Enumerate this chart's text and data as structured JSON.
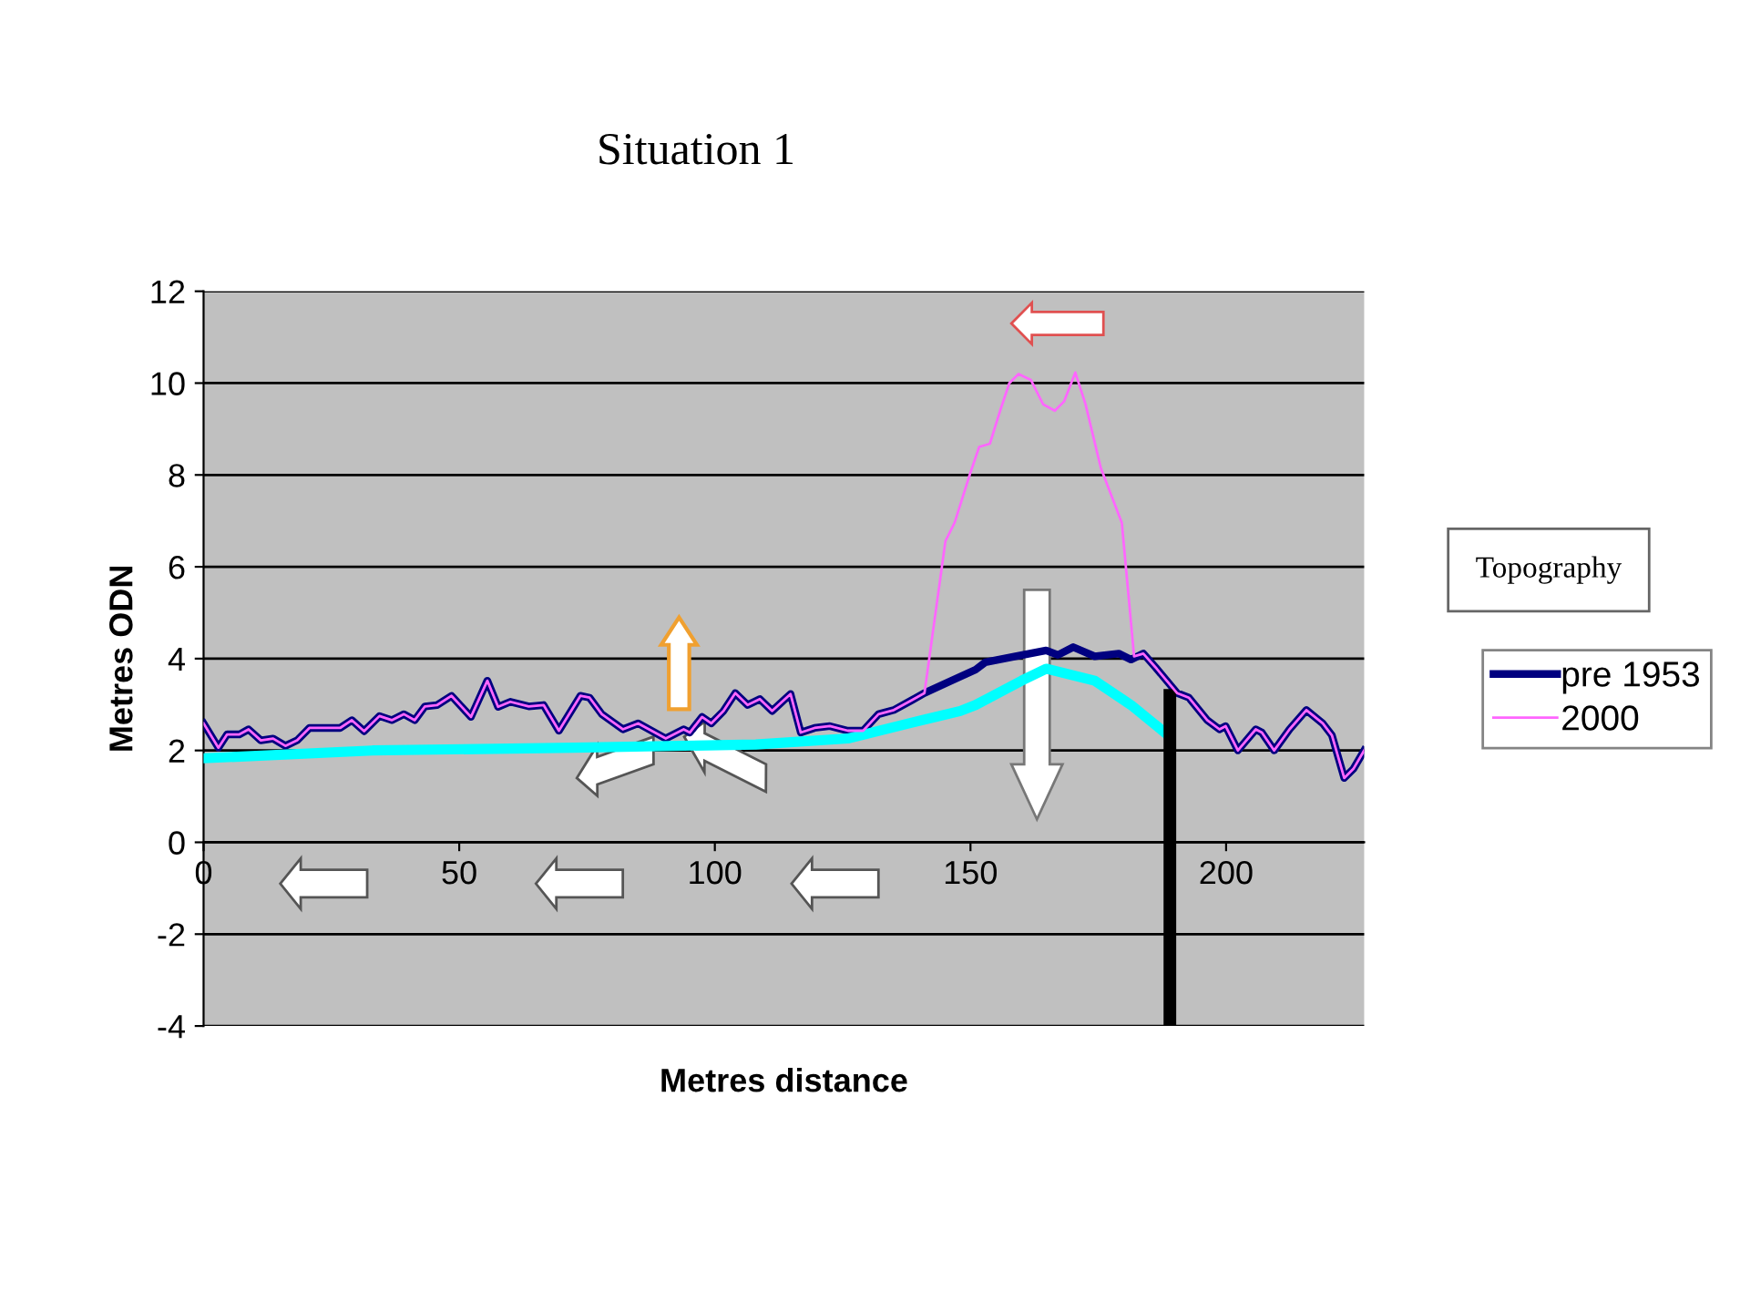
{
  "chart_data": {
    "type": "line",
    "title": "Situation 1",
    "xlabel": "Metres distance",
    "ylabel": "Metres ODN",
    "legend_title": "Topography",
    "xlim": [
      0,
      227
    ],
    "ylim": [
      -4,
      12
    ],
    "xticks": [
      0,
      50,
      100,
      150,
      200
    ],
    "yticks": [
      -4,
      -2,
      0,
      2,
      4,
      6,
      8,
      10,
      12
    ],
    "grid": "y",
    "legend": "right",
    "series": [
      {
        "name": "pre 1953",
        "color": "#000080",
        "x": [
          0,
          2.9,
          4.6,
          7,
          8.8,
          11.2,
          13.6,
          16,
          18.3,
          20.7,
          26.7,
          29,
          31.4,
          34.4,
          36.8,
          39.2,
          41.3,
          43.3,
          45.7,
          48.5,
          52.3,
          55.5,
          57.6,
          60,
          63.6,
          66.5,
          69.5,
          73.7,
          75.5,
          77.9,
          82,
          85,
          90.4,
          93.9,
          95.1,
          97.5,
          99.3,
          101.7,
          104,
          106.4,
          108.8,
          111.2,
          114.8,
          116.8,
          119.5,
          122.5,
          126,
          129,
          132,
          135,
          138.6,
          141,
          146.3,
          151,
          152.9,
          158.8,
          164.8,
          167.1,
          170.1,
          174.3,
          179,
          181.4,
          183.8,
          186.2,
          190.4,
          192.7,
          196.3,
          198.7,
          199.9,
          202.3,
          205.8,
          207,
          209.4,
          212.4,
          215.7,
          218.9,
          220.7,
          223.1,
          224.9,
          227
        ],
        "values": [
          2.59,
          2.06,
          2.35,
          2.35,
          2.46,
          2.22,
          2.26,
          2.1,
          2.22,
          2.49,
          2.49,
          2.66,
          2.42,
          2.75,
          2.66,
          2.79,
          2.66,
          2.96,
          2.99,
          3.19,
          2.73,
          3.52,
          2.95,
          3.06,
          2.96,
          2.99,
          2.43,
          3.19,
          3.15,
          2.79,
          2.46,
          2.59,
          2.26,
          2.46,
          2.39,
          2.73,
          2.59,
          2.86,
          3.25,
          2.99,
          3.12,
          2.86,
          3.23,
          2.39,
          2.49,
          2.53,
          2.43,
          2.43,
          2.79,
          2.88,
          3.1,
          3.25,
          3.52,
          3.76,
          3.92,
          4.05,
          4.18,
          4.08,
          4.25,
          4.05,
          4.11,
          3.98,
          4.11,
          3.81,
          3.25,
          3.15,
          2.66,
          2.46,
          2.53,
          2.0,
          2.46,
          2.39,
          2.0,
          2.46,
          2.88,
          2.59,
          2.33,
          1.4,
          1.6,
          2.0
        ]
      },
      {
        "name": "2000",
        "color": "#ff66ff",
        "x": [
          0,
          2.9,
          4.6,
          7,
          8.8,
          11.2,
          13.6,
          16,
          18.3,
          20.7,
          26.7,
          29,
          31.4,
          34.4,
          36.8,
          39.2,
          41.3,
          43.3,
          45.7,
          48.5,
          52.3,
          55.5,
          57.6,
          60,
          63.6,
          66.5,
          69.5,
          73.7,
          75.5,
          77.9,
          82,
          85,
          90.4,
          93.9,
          95.1,
          97.5,
          99.3,
          101.7,
          104,
          106.4,
          108.8,
          111.2,
          114.8,
          116.8,
          119.5,
          122.5,
          126,
          129,
          132,
          135,
          138.6,
          141,
          145.1,
          146.9,
          149.9,
          151.7,
          153.8,
          155.8,
          157.6,
          159.4,
          161.8,
          164.2,
          166.5,
          168.3,
          170.5,
          172.5,
          175.5,
          179.6,
          182,
          183.8,
          186.2,
          190.4,
          192.7,
          196.3,
          198.7,
          199.9,
          202.3,
          205.8,
          207,
          209.4,
          212.4,
          215.7,
          218.9,
          220.7,
          223.1,
          224.9,
          227
        ],
        "values": [
          2.59,
          2.06,
          2.35,
          2.35,
          2.46,
          2.22,
          2.26,
          2.1,
          2.22,
          2.49,
          2.49,
          2.66,
          2.42,
          2.75,
          2.66,
          2.79,
          2.66,
          2.96,
          2.99,
          3.19,
          2.73,
          3.52,
          2.95,
          3.06,
          2.96,
          2.99,
          2.43,
          3.19,
          3.15,
          2.79,
          2.46,
          2.59,
          2.26,
          2.46,
          2.39,
          2.73,
          2.59,
          2.86,
          3.25,
          2.99,
          3.12,
          2.86,
          3.23,
          2.39,
          2.49,
          2.53,
          2.43,
          2.43,
          2.79,
          2.88,
          3.1,
          3.25,
          6.56,
          6.96,
          8.02,
          8.61,
          8.68,
          9.4,
          10.0,
          10.2,
          10.07,
          9.54,
          9.4,
          9.6,
          10.23,
          9.54,
          8.15,
          6.96,
          4.05,
          4.11,
          3.81,
          3.25,
          3.15,
          2.66,
          2.46,
          2.53,
          2.0,
          2.46,
          2.39,
          2.0,
          2.46,
          2.88,
          2.59,
          2.33,
          1.4,
          1.6,
          2.0
        ]
      },
      {
        "color": "#00ffff",
        "x": [
          0,
          33,
          72.5,
          108,
          126,
          138,
          148,
          151,
          160,
          164.8,
          174.3,
          181.4,
          188
        ],
        "values": [
          1.83,
          2.0,
          2.06,
          2.13,
          2.26,
          2.59,
          2.86,
          2.99,
          3.52,
          3.78,
          3.52,
          2.99,
          2.39
        ]
      },
      {
        "color": "#000000",
        "x": [
          189,
          189
        ],
        "values": [
          3.2,
          -4
        ]
      }
    ]
  }
}
